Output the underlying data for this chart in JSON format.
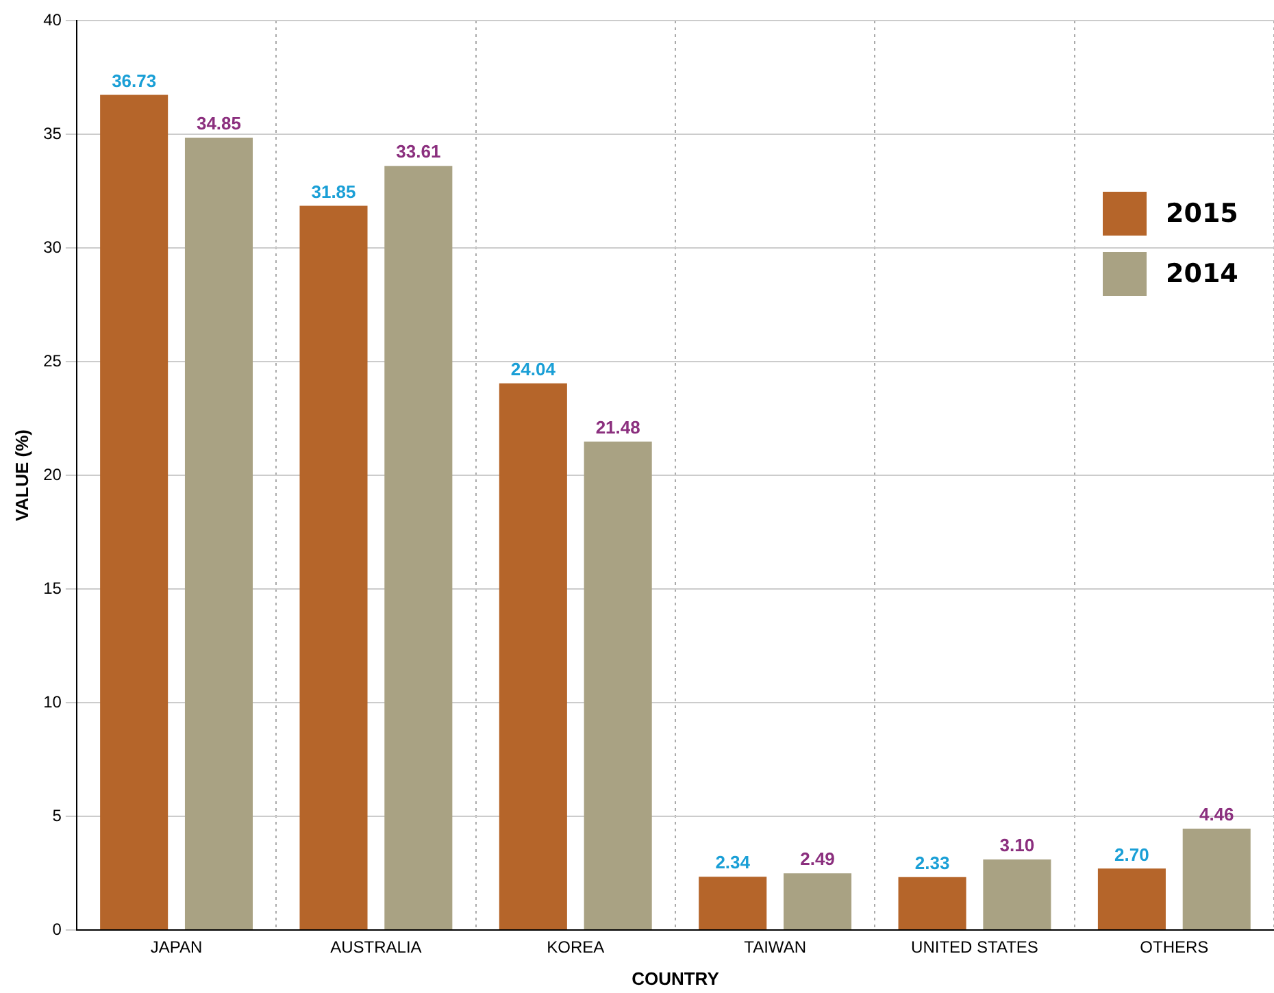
{
  "chart_data": {
    "type": "bar",
    "xlabel": "COUNTRY",
    "ylabel": "VALUE (%)",
    "categories": [
      "JAPAN",
      "AUSTRALIA",
      "KOREA",
      "TAIWAN",
      "UNITED STATES",
      "OTHERS"
    ],
    "series": [
      {
        "name": "2015",
        "color": "#b5652a",
        "values": [
          36.73,
          31.85,
          24.04,
          2.34,
          2.33,
          2.7
        ],
        "value_labels": [
          "36.73",
          "31.85",
          "24.04",
          "2.34",
          "2.33",
          "2.70"
        ]
      },
      {
        "name": "2014",
        "color": "#a9a283",
        "values": [
          34.85,
          33.61,
          21.48,
          2.49,
          3.1,
          4.46
        ],
        "value_labels": [
          "34.85",
          "33.61",
          "21.48",
          "2.49",
          "3.10",
          "4.46"
        ]
      }
    ],
    "ylim": [
      0,
      40
    ],
    "yticks": [
      0,
      5,
      10,
      15,
      20,
      25,
      30,
      35,
      40
    ],
    "grid": true,
    "legend": "top right"
  }
}
